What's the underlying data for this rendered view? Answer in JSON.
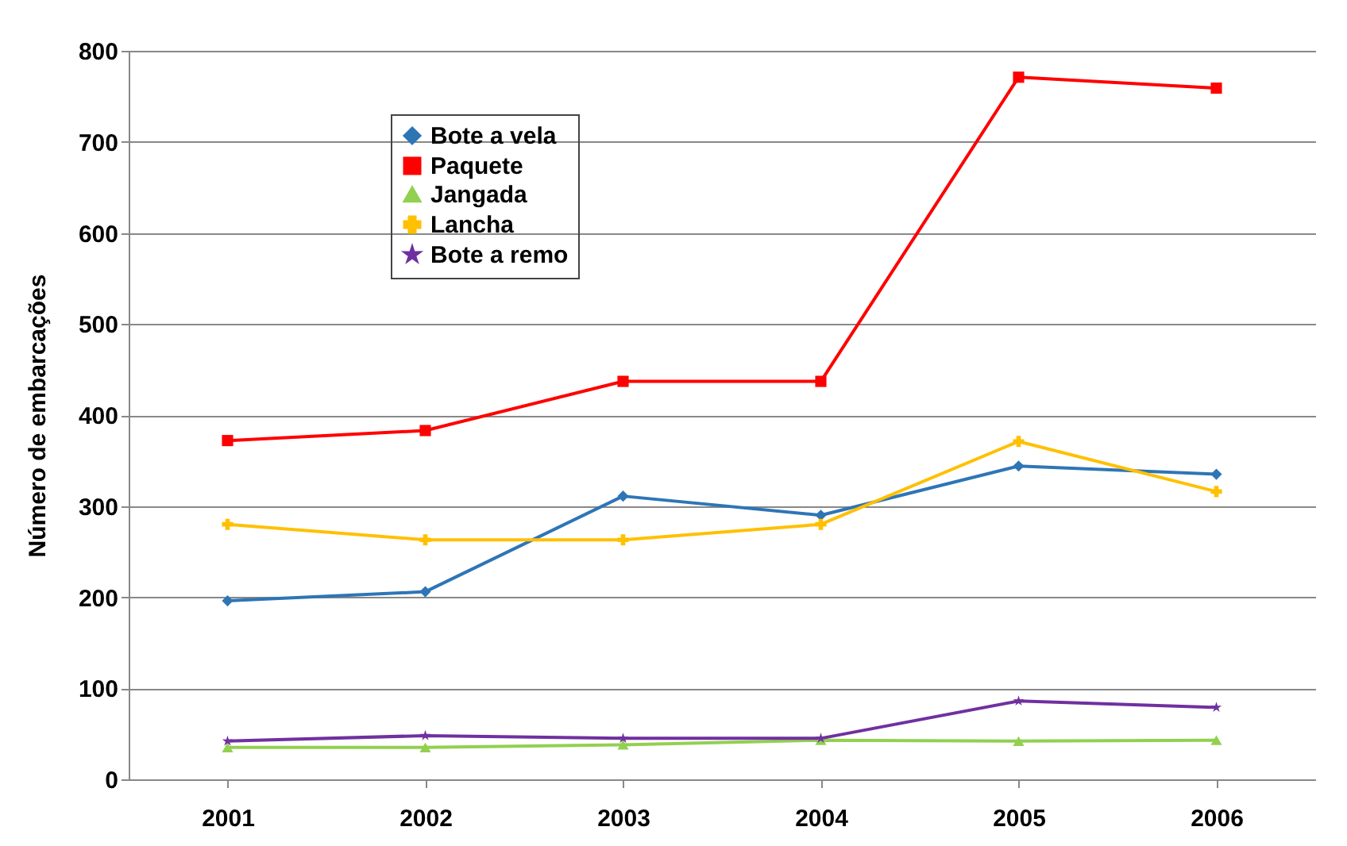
{
  "chart_data": {
    "type": "line",
    "ylabel": "Número de embarcações",
    "categories": [
      "2001",
      "2002",
      "2003",
      "2004",
      "2005",
      "2006"
    ],
    "series": [
      {
        "name": "Bote a vela",
        "color": "#2e75b6",
        "marker": "diamond",
        "values": [
          196,
          206,
          311,
          290,
          344,
          335
        ]
      },
      {
        "name": "Paquete",
        "color": "#ff0000",
        "marker": "square",
        "values": [
          372,
          383,
          437,
          437,
          771,
          759
        ]
      },
      {
        "name": "Jangada",
        "color": "#92d050",
        "marker": "triangle",
        "values": [
          35,
          35,
          38,
          43,
          42,
          43
        ]
      },
      {
        "name": "Lancha",
        "color": "#ffc000",
        "marker": "cross",
        "values": [
          280,
          263,
          263,
          280,
          371,
          316
        ]
      },
      {
        "name": "Bote a remo",
        "color": "#7030a0",
        "marker": "star",
        "values": [
          42,
          48,
          45,
          45,
          86,
          79
        ]
      }
    ],
    "ylim": [
      0,
      800
    ],
    "yticks": [
      0,
      100,
      200,
      300,
      400,
      500,
      600,
      700,
      800
    ],
    "grid": "y",
    "legend": "top left",
    "line_style": "solid"
  }
}
